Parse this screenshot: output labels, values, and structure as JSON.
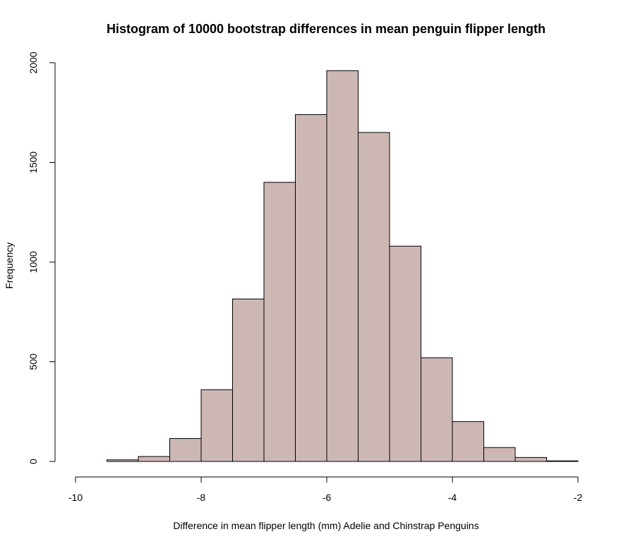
{
  "chart_data": {
    "type": "bar",
    "subtype": "histogram",
    "title": "Histogram of 10000 bootstrap differences in mean penguin flipper length",
    "xlabel": "Difference in mean flipper length (mm) Adelie and Chinstrap Penguins",
    "ylabel": "Frequency",
    "bin_width": 0.5,
    "bins": [
      {
        "start": -10.0,
        "end": -9.5,
        "count": 0
      },
      {
        "start": -9.5,
        "end": -9.0,
        "count": 8
      },
      {
        "start": -9.0,
        "end": -8.5,
        "count": 25
      },
      {
        "start": -8.5,
        "end": -8.0,
        "count": 115
      },
      {
        "start": -8.0,
        "end": -7.5,
        "count": 360
      },
      {
        "start": -7.5,
        "end": -7.0,
        "count": 815
      },
      {
        "start": -7.0,
        "end": -6.5,
        "count": 1400
      },
      {
        "start": -6.5,
        "end": -6.0,
        "count": 1740
      },
      {
        "start": -6.0,
        "end": -5.5,
        "count": 1960
      },
      {
        "start": -5.5,
        "end": -5.0,
        "count": 1650
      },
      {
        "start": -5.0,
        "end": -4.5,
        "count": 1080
      },
      {
        "start": -4.5,
        "end": -4.0,
        "count": 520
      },
      {
        "start": -4.0,
        "end": -3.5,
        "count": 200
      },
      {
        "start": -3.5,
        "end": -3.0,
        "count": 70
      },
      {
        "start": -3.0,
        "end": -2.5,
        "count": 20
      },
      {
        "start": -2.5,
        "end": -2.0,
        "count": 3
      }
    ],
    "xlim": [
      -10,
      -2
    ],
    "ylim": [
      0,
      2000
    ],
    "xticks": [
      -10,
      -8,
      -6,
      -4,
      -2
    ],
    "yticks": [
      0,
      500,
      1000,
      1500,
      2000
    ],
    "xtick_labels": [
      "-10",
      "-8",
      "-6",
      "-4",
      "-2"
    ],
    "ytick_labels": [
      "0",
      "500",
      "1000",
      "1500",
      "2000"
    ],
    "bar_color": "#CDB7B5",
    "edge_color": "#000000",
    "grid": false,
    "legend": "none"
  }
}
